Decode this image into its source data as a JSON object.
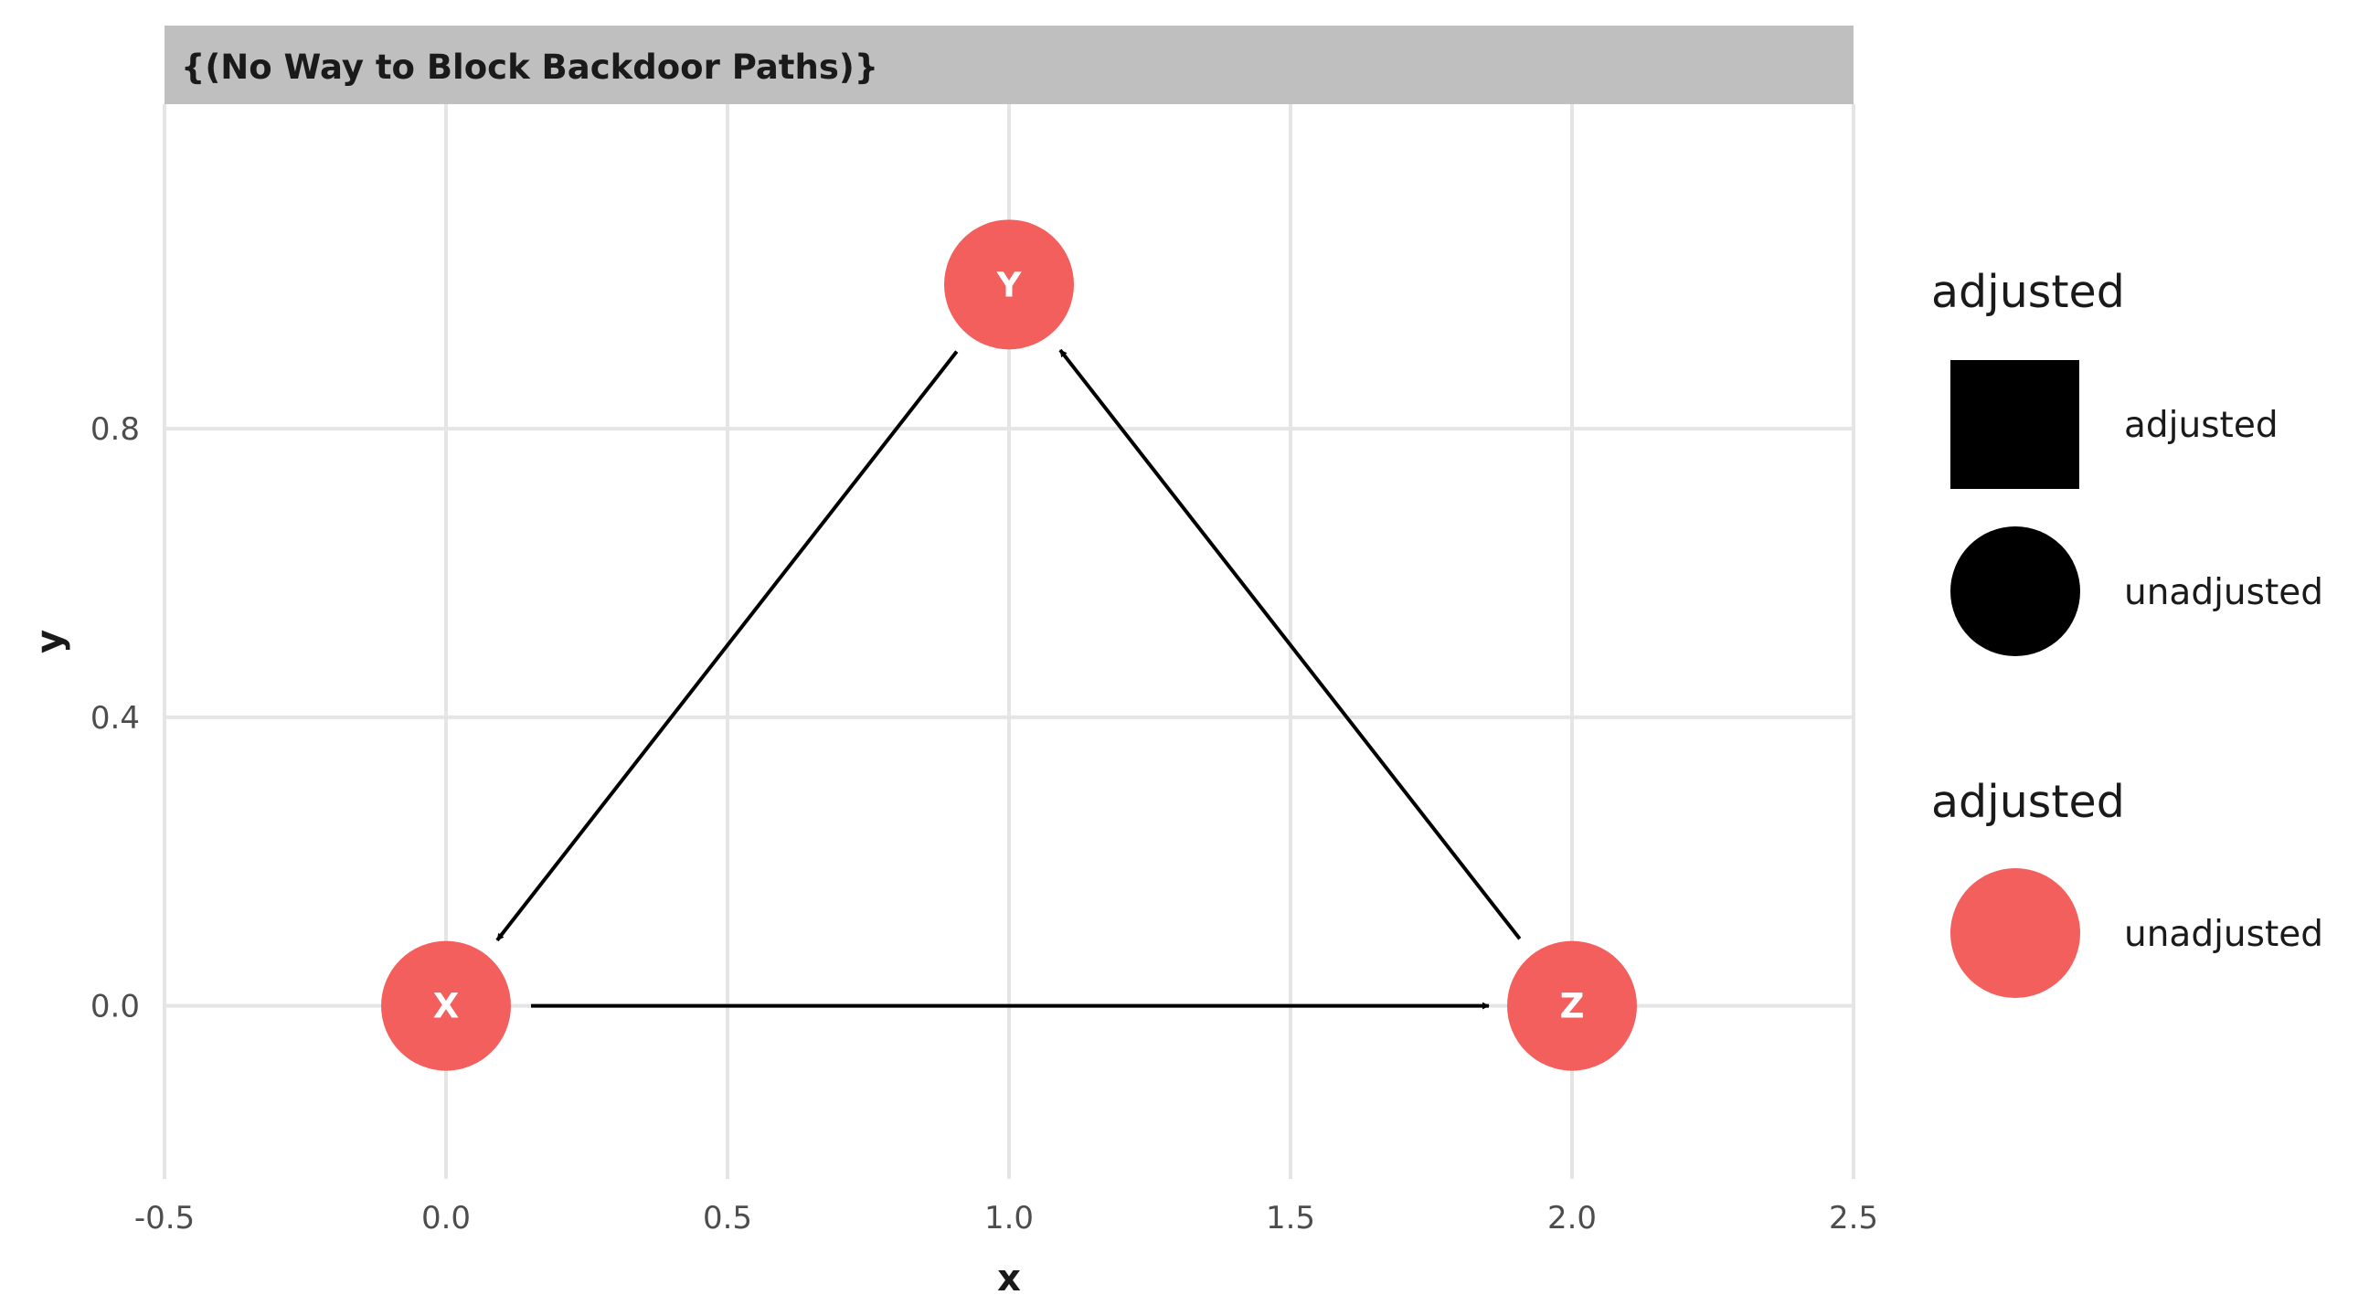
{
  "panel_title": "{(No Way to Block Backdoor Paths)}",
  "colors": {
    "node": "#f25f5c",
    "edge": "#000000",
    "grid": "#e5e5e5",
    "strip": "#bfbfbf"
  },
  "chart_data": {
    "type": "dag",
    "xlabel": "x",
    "ylabel": "y",
    "xlim": [
      -0.5,
      2.5
    ],
    "ylim": [
      -0.24,
      1.25
    ],
    "x_ticks": [
      "-0.5",
      "0.0",
      "0.5",
      "1.0",
      "1.5",
      "2.0",
      "2.5"
    ],
    "y_ticks": [
      "0.0",
      "0.4",
      "0.8"
    ],
    "grid": true,
    "nodes": [
      {
        "name": "X",
        "x": 0,
        "y": 0,
        "status": "unadjusted"
      },
      {
        "name": "Y",
        "x": 1,
        "y": 1,
        "status": "unadjusted"
      },
      {
        "name": "Z",
        "x": 2,
        "y": 0,
        "status": "unadjusted"
      }
    ],
    "edges": [
      {
        "from": "Y",
        "to": "X"
      },
      {
        "from": "X",
        "to": "Z"
      },
      {
        "from": "Z",
        "to": "Y"
      }
    ]
  },
  "legend": {
    "shape": {
      "title": "adjusted",
      "items": [
        {
          "label": "adjusted",
          "shape": "square"
        },
        {
          "label": "unadjusted",
          "shape": "circle"
        }
      ]
    },
    "color": {
      "title": "adjusted",
      "items": [
        {
          "label": "unadjusted",
          "color": "#f25f5c"
        }
      ]
    }
  }
}
